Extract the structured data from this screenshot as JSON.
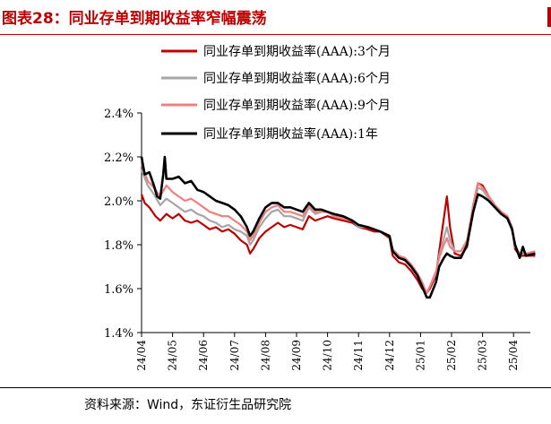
{
  "header": {
    "title": "图表28：同业存单到期收益率窄幅震荡"
  },
  "footer": {
    "source": "资料来源：Wind，东证衍生品研究院"
  },
  "colors": {
    "title": "#c00000",
    "s3m": "#c00000",
    "s6m": "#a6a6a6",
    "s9m": "#f08080",
    "s1y": "#000000"
  },
  "chart_data": {
    "type": "line",
    "title": "",
    "xlabel": "",
    "ylabel": "",
    "ylim": [
      1.4,
      2.4
    ],
    "y_ticks": [
      "1.4%",
      "1.6%",
      "1.8%",
      "2.0%",
      "2.2%",
      "2.4%"
    ],
    "x_ticks": [
      "24/04",
      "24/05",
      "24/06",
      "24/07",
      "24/08",
      "24/09",
      "24/10",
      "24/11",
      "24/12",
      "25/01",
      "25/02",
      "25/03",
      "25/04"
    ],
    "legend_position": "top-left",
    "grid": false,
    "series": [
      {
        "name": "同业存单到期收益率(AAA):3个月",
        "color": "#c00000",
        "points": [
          [
            0,
            2.03
          ],
          [
            0.1,
            1.99
          ],
          [
            0.25,
            1.97
          ],
          [
            0.45,
            1.93
          ],
          [
            0.6,
            1.91
          ],
          [
            0.8,
            1.94
          ],
          [
            1,
            1.92
          ],
          [
            1.2,
            1.94
          ],
          [
            1.4,
            1.91
          ],
          [
            1.6,
            1.9
          ],
          [
            1.8,
            1.91
          ],
          [
            2,
            1.89
          ],
          [
            2.2,
            1.87
          ],
          [
            2.4,
            1.88
          ],
          [
            2.6,
            1.86
          ],
          [
            2.8,
            1.87
          ],
          [
            3,
            1.85
          ],
          [
            3.2,
            1.82
          ],
          [
            3.4,
            1.8
          ],
          [
            3.5,
            1.76
          ],
          [
            3.6,
            1.78
          ],
          [
            3.8,
            1.83
          ],
          [
            4,
            1.86
          ],
          [
            4.2,
            1.88
          ],
          [
            4.4,
            1.9
          ],
          [
            4.6,
            1.88
          ],
          [
            4.8,
            1.89
          ],
          [
            5,
            1.88
          ],
          [
            5.2,
            1.87
          ],
          [
            5.4,
            1.93
          ],
          [
            5.6,
            1.91
          ],
          [
            5.8,
            1.92
          ],
          [
            6,
            1.93
          ],
          [
            6.2,
            1.92
          ],
          [
            6.5,
            1.91
          ],
          [
            6.8,
            1.9
          ],
          [
            7,
            1.88
          ],
          [
            7.3,
            1.87
          ],
          [
            7.5,
            1.86
          ],
          [
            7.7,
            1.86
          ],
          [
            8,
            1.83
          ],
          [
            8.1,
            1.75
          ],
          [
            8.3,
            1.72
          ],
          [
            8.5,
            1.71
          ],
          [
            8.7,
            1.68
          ],
          [
            8.9,
            1.64
          ],
          [
            9.05,
            1.6
          ],
          [
            9.2,
            1.58
          ],
          [
            9.3,
            1.6
          ],
          [
            9.5,
            1.66
          ],
          [
            9.6,
            1.77
          ],
          [
            9.75,
            1.92
          ],
          [
            9.85,
            2.02
          ],
          [
            9.95,
            1.88
          ],
          [
            10.1,
            1.76
          ],
          [
            10.3,
            1.75
          ],
          [
            10.5,
            1.79
          ],
          [
            10.7,
            1.98
          ],
          [
            10.85,
            2.08
          ],
          [
            11,
            2.07
          ],
          [
            11.2,
            2.02
          ],
          [
            11.4,
            1.98
          ],
          [
            11.6,
            1.95
          ],
          [
            11.8,
            1.93
          ],
          [
            11.95,
            1.88
          ],
          [
            12.05,
            1.78
          ],
          [
            12.2,
            1.75
          ],
          [
            12.4,
            1.75
          ],
          [
            12.7,
            1.75
          ]
        ]
      },
      {
        "name": "同业存单到期收益率(AAA):6个月",
        "color": "#a6a6a6",
        "points": [
          [
            0,
            2.14
          ],
          [
            0.2,
            2.07
          ],
          [
            0.4,
            2.03
          ],
          [
            0.6,
            1.98
          ],
          [
            0.8,
            2.01
          ],
          [
            1,
            1.99
          ],
          [
            1.2,
            1.97
          ],
          [
            1.4,
            1.95
          ],
          [
            1.6,
            1.96
          ],
          [
            1.8,
            1.94
          ],
          [
            2,
            1.93
          ],
          [
            2.2,
            1.91
          ],
          [
            2.4,
            1.9
          ],
          [
            2.6,
            1.88
          ],
          [
            2.8,
            1.89
          ],
          [
            3,
            1.87
          ],
          [
            3.2,
            1.86
          ],
          [
            3.4,
            1.84
          ],
          [
            3.5,
            1.8
          ],
          [
            3.6,
            1.82
          ],
          [
            3.8,
            1.88
          ],
          [
            4,
            1.92
          ],
          [
            4.2,
            1.95
          ],
          [
            4.4,
            1.96
          ],
          [
            4.6,
            1.93
          ],
          [
            4.8,
            1.93
          ],
          [
            5,
            1.92
          ],
          [
            5.2,
            1.91
          ],
          [
            5.4,
            1.97
          ],
          [
            5.6,
            1.94
          ],
          [
            5.8,
            1.95
          ],
          [
            6,
            1.95
          ],
          [
            6.2,
            1.93
          ],
          [
            6.5,
            1.92
          ],
          [
            6.8,
            1.91
          ],
          [
            7,
            1.88
          ],
          [
            7.3,
            1.88
          ],
          [
            7.5,
            1.87
          ],
          [
            7.7,
            1.86
          ],
          [
            8,
            1.84
          ],
          [
            8.1,
            1.77
          ],
          [
            8.3,
            1.74
          ],
          [
            8.5,
            1.73
          ],
          [
            8.7,
            1.7
          ],
          [
            8.9,
            1.66
          ],
          [
            9.05,
            1.62
          ],
          [
            9.2,
            1.58
          ],
          [
            9.3,
            1.61
          ],
          [
            9.5,
            1.67
          ],
          [
            9.6,
            1.75
          ],
          [
            9.75,
            1.83
          ],
          [
            9.85,
            1.88
          ],
          [
            9.95,
            1.82
          ],
          [
            10.1,
            1.77
          ],
          [
            10.3,
            1.77
          ],
          [
            10.5,
            1.81
          ],
          [
            10.7,
            1.96
          ],
          [
            10.85,
            2.06
          ],
          [
            11,
            2.05
          ],
          [
            11.2,
            2.01
          ],
          [
            11.4,
            1.98
          ],
          [
            11.6,
            1.95
          ],
          [
            11.8,
            1.93
          ],
          [
            11.95,
            1.88
          ],
          [
            12.05,
            1.79
          ],
          [
            12.2,
            1.76
          ],
          [
            12.4,
            1.76
          ],
          [
            12.7,
            1.76
          ]
        ]
      },
      {
        "name": "同业存单到期收益率(AAA):9个月",
        "color": "#f08080",
        "points": [
          [
            0,
            2.17
          ],
          [
            0.2,
            2.09
          ],
          [
            0.4,
            2.06
          ],
          [
            0.6,
            2.02
          ],
          [
            0.8,
            2.07
          ],
          [
            1,
            2.04
          ],
          [
            1.2,
            2.02
          ],
          [
            1.4,
            2.0
          ],
          [
            1.6,
            2.01
          ],
          [
            1.8,
            1.99
          ],
          [
            2,
            1.97
          ],
          [
            2.2,
            1.95
          ],
          [
            2.4,
            1.94
          ],
          [
            2.6,
            1.93
          ],
          [
            2.8,
            1.93
          ],
          [
            3,
            1.91
          ],
          [
            3.2,
            1.89
          ],
          [
            3.4,
            1.86
          ],
          [
            3.5,
            1.82
          ],
          [
            3.6,
            1.84
          ],
          [
            3.8,
            1.9
          ],
          [
            4,
            1.95
          ],
          [
            4.2,
            1.97
          ],
          [
            4.4,
            1.98
          ],
          [
            4.6,
            1.95
          ],
          [
            4.8,
            1.95
          ],
          [
            5,
            1.94
          ],
          [
            5.2,
            1.93
          ],
          [
            5.4,
            1.98
          ],
          [
            5.6,
            1.95
          ],
          [
            5.8,
            1.95
          ],
          [
            6,
            1.95
          ],
          [
            6.2,
            1.93
          ],
          [
            6.5,
            1.92
          ],
          [
            6.8,
            1.91
          ],
          [
            7,
            1.89
          ],
          [
            7.3,
            1.88
          ],
          [
            7.5,
            1.87
          ],
          [
            7.7,
            1.86
          ],
          [
            8,
            1.84
          ],
          [
            8.1,
            1.78
          ],
          [
            8.3,
            1.75
          ],
          [
            8.5,
            1.74
          ],
          [
            8.7,
            1.71
          ],
          [
            8.9,
            1.67
          ],
          [
            9.05,
            1.63
          ],
          [
            9.2,
            1.58
          ],
          [
            9.3,
            1.61
          ],
          [
            9.5,
            1.68
          ],
          [
            9.6,
            1.74
          ],
          [
            9.75,
            1.8
          ],
          [
            9.85,
            1.83
          ],
          [
            9.95,
            1.79
          ],
          [
            10.1,
            1.77
          ],
          [
            10.3,
            1.77
          ],
          [
            10.5,
            1.82
          ],
          [
            10.7,
            1.98
          ],
          [
            10.85,
            2.08
          ],
          [
            11,
            2.06
          ],
          [
            11.2,
            2.02
          ],
          [
            11.4,
            1.98
          ],
          [
            11.6,
            1.95
          ],
          [
            11.8,
            1.93
          ],
          [
            11.95,
            1.88
          ],
          [
            12.05,
            1.79
          ],
          [
            12.2,
            1.76
          ],
          [
            12.4,
            1.76
          ],
          [
            12.7,
            1.77
          ]
        ]
      },
      {
        "name": "同业存单到期收益率(AAA):1年",
        "color": "#000000",
        "points": [
          [
            0,
            2.2
          ],
          [
            0.1,
            2.12
          ],
          [
            0.25,
            2.13
          ],
          [
            0.4,
            2.07
          ],
          [
            0.5,
            2.02
          ],
          [
            0.6,
            2.01
          ],
          [
            0.7,
            2.12
          ],
          [
            0.75,
            2.2
          ],
          [
            0.8,
            2.1
          ],
          [
            1,
            2.1
          ],
          [
            1.2,
            2.11
          ],
          [
            1.4,
            2.08
          ],
          [
            1.6,
            2.09
          ],
          [
            1.8,
            2.05
          ],
          [
            2,
            2.04
          ],
          [
            2.2,
            2.02
          ],
          [
            2.4,
            2.0
          ],
          [
            2.6,
            1.99
          ],
          [
            2.8,
            1.98
          ],
          [
            3,
            1.96
          ],
          [
            3.2,
            1.93
          ],
          [
            3.4,
            1.88
          ],
          [
            3.5,
            1.84
          ],
          [
            3.6,
            1.86
          ],
          [
            3.8,
            1.92
          ],
          [
            4,
            1.97
          ],
          [
            4.2,
            1.99
          ],
          [
            4.4,
            1.99
          ],
          [
            4.6,
            1.97
          ],
          [
            4.8,
            1.97
          ],
          [
            5,
            1.96
          ],
          [
            5.2,
            1.95
          ],
          [
            5.4,
            1.99
          ],
          [
            5.6,
            1.96
          ],
          [
            5.8,
            1.96
          ],
          [
            6,
            1.95
          ],
          [
            6.2,
            1.94
          ],
          [
            6.5,
            1.93
          ],
          [
            6.8,
            1.91
          ],
          [
            7,
            1.89
          ],
          [
            7.3,
            1.88
          ],
          [
            7.5,
            1.87
          ],
          [
            7.7,
            1.86
          ],
          [
            8,
            1.84
          ],
          [
            8.1,
            1.77
          ],
          [
            8.3,
            1.74
          ],
          [
            8.5,
            1.73
          ],
          [
            8.7,
            1.7
          ],
          [
            8.9,
            1.66
          ],
          [
            9.05,
            1.61
          ],
          [
            9.2,
            1.56
          ],
          [
            9.3,
            1.56
          ],
          [
            9.5,
            1.63
          ],
          [
            9.6,
            1.7
          ],
          [
            9.75,
            1.74
          ],
          [
            9.85,
            1.76
          ],
          [
            9.95,
            1.75
          ],
          [
            10.1,
            1.74
          ],
          [
            10.3,
            1.74
          ],
          [
            10.5,
            1.8
          ],
          [
            10.7,
            1.95
          ],
          [
            10.85,
            2.03
          ],
          [
            11,
            2.02
          ],
          [
            11.2,
            2.0
          ],
          [
            11.4,
            1.97
          ],
          [
            11.6,
            1.94
          ],
          [
            11.8,
            1.92
          ],
          [
            11.95,
            1.87
          ],
          [
            12.05,
            1.8
          ],
          [
            12.2,
            1.74
          ],
          [
            12.3,
            1.79
          ],
          [
            12.4,
            1.75
          ],
          [
            12.7,
            1.76
          ]
        ]
      }
    ]
  }
}
